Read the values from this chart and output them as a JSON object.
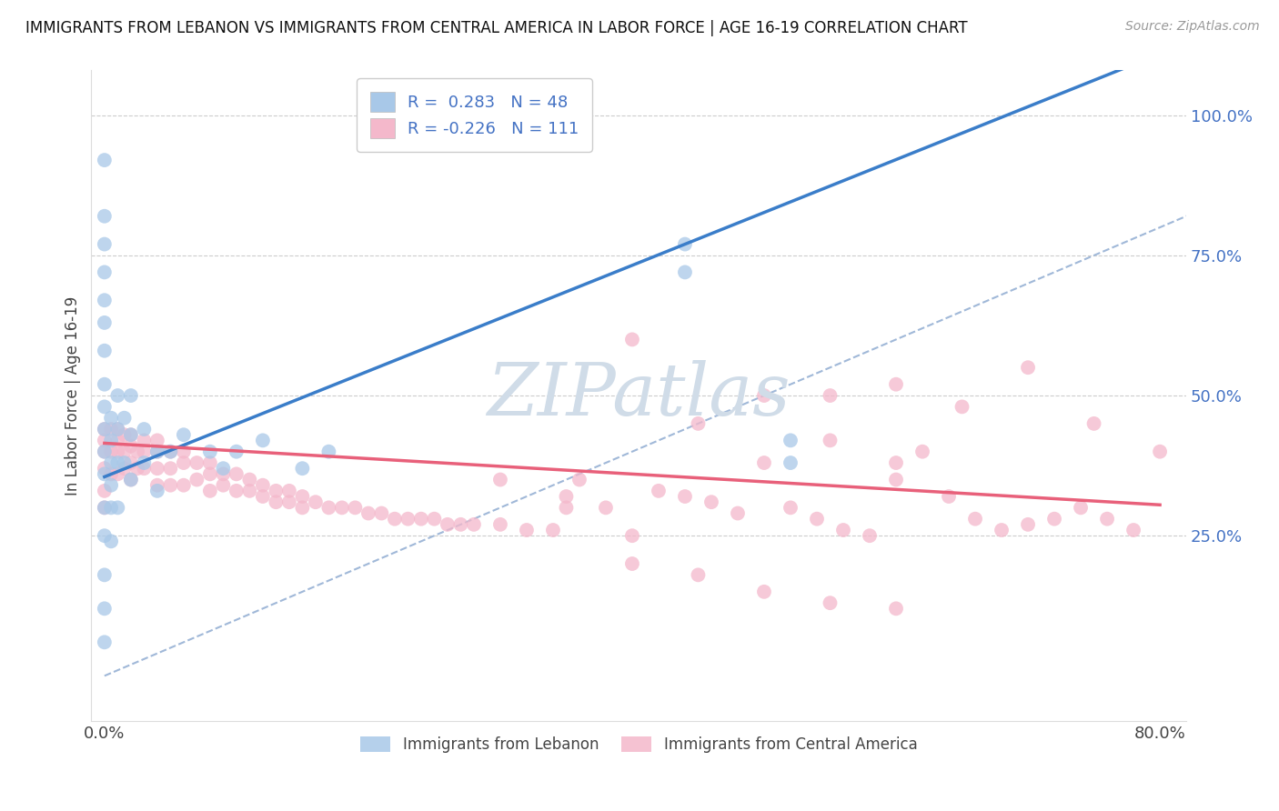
{
  "title": "IMMIGRANTS FROM LEBANON VS IMMIGRANTS FROM CENTRAL AMERICA IN LABOR FORCE | AGE 16-19 CORRELATION CHART",
  "source": "Source: ZipAtlas.com",
  "ylabel": "In Labor Force | Age 16-19",
  "xlim": [
    -0.01,
    0.82
  ],
  "ylim": [
    -0.08,
    1.08
  ],
  "legend_R1": "0.283",
  "legend_N1": "48",
  "legend_R2": "-0.226",
  "legend_N2": "111",
  "blue_color": "#a8c8e8",
  "pink_color": "#f4b8cb",
  "blue_line_color": "#3a7dc9",
  "pink_line_color": "#e8607a",
  "diag_color": "#a0b8d8",
  "watermark_color": "#d0dce8",
  "blue_line_x0": 0.0,
  "blue_line_y0": 0.355,
  "blue_line_x1": 0.44,
  "blue_line_y1": 0.77,
  "pink_line_x0": 0.0,
  "pink_line_x1": 0.8,
  "pink_line_y0": 0.415,
  "pink_line_y1": 0.305,
  "blue_scatter_x": [
    0.0,
    0.0,
    0.0,
    0.0,
    0.0,
    0.0,
    0.0,
    0.0,
    0.0,
    0.0,
    0.0,
    0.0,
    0.0,
    0.0,
    0.0,
    0.0,
    0.0,
    0.005,
    0.005,
    0.005,
    0.005,
    0.005,
    0.005,
    0.01,
    0.01,
    0.01,
    0.01,
    0.015,
    0.015,
    0.02,
    0.02,
    0.02,
    0.03,
    0.03,
    0.04,
    0.04,
    0.05,
    0.06,
    0.08,
    0.09,
    0.1,
    0.12,
    0.15,
    0.17,
    0.44,
    0.44,
    0.52,
    0.52
  ],
  "blue_scatter_y": [
    0.92,
    0.82,
    0.77,
    0.72,
    0.67,
    0.63,
    0.58,
    0.52,
    0.48,
    0.44,
    0.4,
    0.36,
    0.3,
    0.25,
    0.18,
    0.12,
    0.06,
    0.46,
    0.42,
    0.38,
    0.34,
    0.3,
    0.24,
    0.5,
    0.44,
    0.38,
    0.3,
    0.46,
    0.38,
    0.5,
    0.43,
    0.35,
    0.44,
    0.38,
    0.4,
    0.33,
    0.4,
    0.43,
    0.4,
    0.37,
    0.4,
    0.42,
    0.37,
    0.4,
    0.77,
    0.72,
    0.38,
    0.42
  ],
  "pink_scatter_x": [
    0.0,
    0.0,
    0.0,
    0.0,
    0.0,
    0.0,
    0.005,
    0.005,
    0.005,
    0.01,
    0.01,
    0.01,
    0.01,
    0.015,
    0.015,
    0.015,
    0.02,
    0.02,
    0.02,
    0.02,
    0.025,
    0.025,
    0.03,
    0.03,
    0.03,
    0.04,
    0.04,
    0.04,
    0.04,
    0.05,
    0.05,
    0.05,
    0.06,
    0.06,
    0.06,
    0.07,
    0.07,
    0.08,
    0.08,
    0.08,
    0.09,
    0.09,
    0.1,
    0.1,
    0.11,
    0.11,
    0.12,
    0.12,
    0.13,
    0.13,
    0.14,
    0.14,
    0.15,
    0.15,
    0.16,
    0.17,
    0.18,
    0.19,
    0.2,
    0.21,
    0.22,
    0.23,
    0.24,
    0.25,
    0.26,
    0.27,
    0.28,
    0.3,
    0.32,
    0.34,
    0.36,
    0.38,
    0.4,
    0.42,
    0.44,
    0.46,
    0.48,
    0.5,
    0.52,
    0.54,
    0.56,
    0.58,
    0.6,
    0.62,
    0.64,
    0.66,
    0.68,
    0.7,
    0.72,
    0.74,
    0.76,
    0.78,
    0.8,
    0.55,
    0.6,
    0.65,
    0.7,
    0.75,
    0.4,
    0.45,
    0.5,
    0.55,
    0.6,
    0.3,
    0.35,
    0.35,
    0.4,
    0.45,
    0.5,
    0.55,
    0.6
  ],
  "pink_scatter_y": [
    0.44,
    0.42,
    0.4,
    0.37,
    0.33,
    0.3,
    0.44,
    0.4,
    0.36,
    0.44,
    0.42,
    0.4,
    0.36,
    0.43,
    0.4,
    0.37,
    0.43,
    0.41,
    0.38,
    0.35,
    0.4,
    0.37,
    0.42,
    0.4,
    0.37,
    0.42,
    0.4,
    0.37,
    0.34,
    0.4,
    0.37,
    0.34,
    0.4,
    0.38,
    0.34,
    0.38,
    0.35,
    0.38,
    0.36,
    0.33,
    0.36,
    0.34,
    0.36,
    0.33,
    0.35,
    0.33,
    0.34,
    0.32,
    0.33,
    0.31,
    0.33,
    0.31,
    0.32,
    0.3,
    0.31,
    0.3,
    0.3,
    0.3,
    0.29,
    0.29,
    0.28,
    0.28,
    0.28,
    0.28,
    0.27,
    0.27,
    0.27,
    0.27,
    0.26,
    0.26,
    0.35,
    0.3,
    0.25,
    0.33,
    0.32,
    0.31,
    0.29,
    0.38,
    0.3,
    0.28,
    0.26,
    0.25,
    0.35,
    0.4,
    0.32,
    0.28,
    0.26,
    0.27,
    0.28,
    0.3,
    0.28,
    0.26,
    0.4,
    0.5,
    0.52,
    0.48,
    0.55,
    0.45,
    0.6,
    0.45,
    0.5,
    0.42,
    0.38,
    0.35,
    0.3,
    0.32,
    0.2,
    0.18,
    0.15,
    0.13,
    0.12
  ]
}
